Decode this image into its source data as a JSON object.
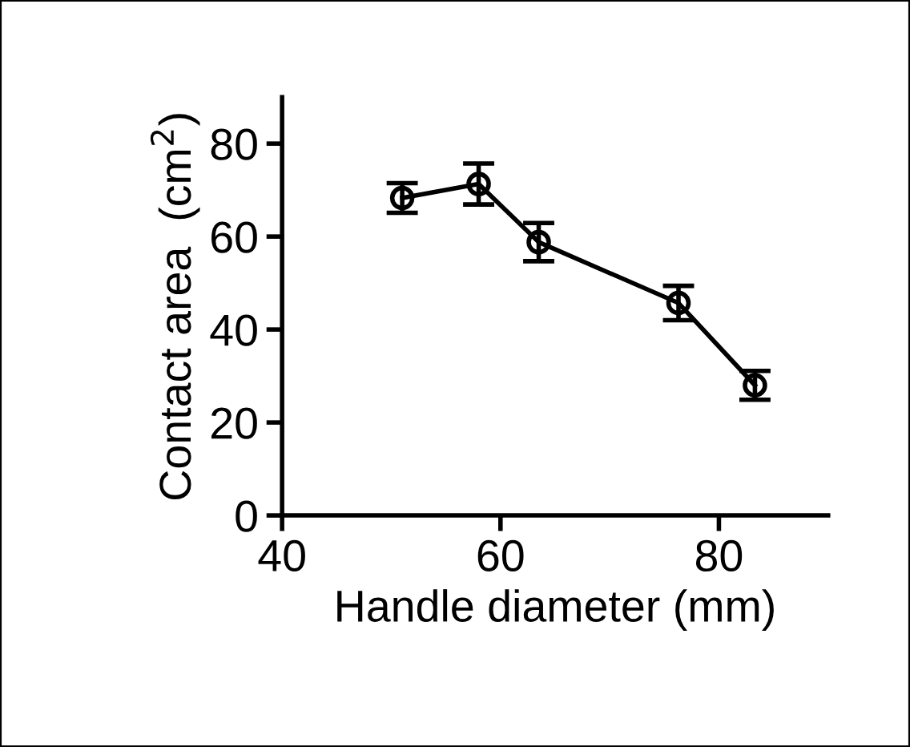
{
  "chart_data": {
    "type": "line",
    "xlabel": "Handle diameter (mm)",
    "ylabel": "Contact area  (cm$^{2}$)",
    "x": [
      51,
      58,
      63.5,
      76.3,
      83.3
    ],
    "series": [
      {
        "color": "#000000",
        "values": [
          68.3,
          71.3,
          58.8,
          45.7,
          28.0
        ],
        "errors": [
          3.2,
          4.4,
          4.1,
          3.7,
          3.1
        ]
      }
    ],
    "xlim": [
      40,
      90
    ],
    "ylim": [
      0,
      90
    ],
    "xticks": [
      40,
      60,
      80
    ],
    "yticks": [
      0,
      20,
      40,
      60,
      80
    ],
    "marker": "circle",
    "line_style": "solid",
    "grid": false,
    "legend": false
  }
}
